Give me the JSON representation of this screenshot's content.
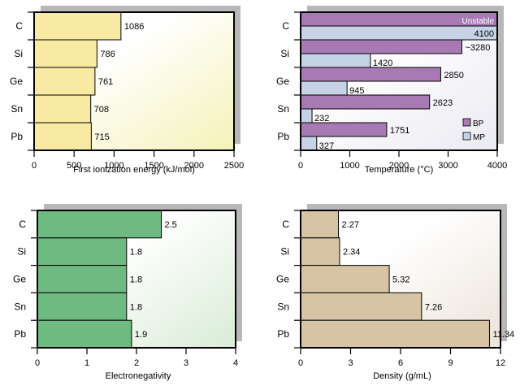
{
  "chart_data": [
    {
      "id": "ionization",
      "type": "bar",
      "orientation": "horizontal",
      "categories": [
        "C",
        "Si",
        "Ge",
        "Sn",
        "Pb"
      ],
      "values": [
        1086,
        786,
        761,
        708,
        715
      ],
      "value_labels": [
        "1086",
        "786",
        "761",
        "708",
        "715"
      ],
      "xlabel": "First ionization energy (kJ/mol)",
      "xlim": [
        0,
        2500
      ],
      "xticks": [
        0,
        500,
        1000,
        1500,
        2000,
        2500
      ],
      "tick_labels": [
        "0",
        "500",
        "1000",
        "1500",
        "2000",
        "2500"
      ],
      "grid": false,
      "colors": {
        "bar": "#f8e9a3",
        "panel_light": "#ffffff",
        "panel_tint": "#f5f2b8",
        "shadow": "#b8b8b8"
      }
    },
    {
      "id": "temperature",
      "type": "bar",
      "orientation": "horizontal",
      "categories": [
        "C",
        "Si",
        "Ge",
        "Sn",
        "Pb"
      ],
      "series": [
        {
          "name": "BP",
          "values": [
            null,
            3280,
            2850,
            2623,
            1751
          ],
          "labels": [
            "",
            "~3280",
            "2850",
            "2623",
            "1751"
          ]
        },
        {
          "name": "MP",
          "values": [
            4100,
            1420,
            945,
            232,
            327
          ],
          "labels": [
            "4100",
            "1420",
            "945",
            "232",
            "327"
          ]
        }
      ],
      "annotations": [
        "Unstable"
      ],
      "unstable_value": 4000,
      "xlabel": "Temperature  (°C)",
      "xlim": [
        0,
        4000
      ],
      "xticks": [
        0,
        1000,
        2000,
        3000,
        4000
      ],
      "tick_labels": [
        "0",
        "1000",
        "2000",
        "3000",
        "4000"
      ],
      "legend": "bottom-right",
      "legend_items": [
        {
          "name": "BP",
          "color": "#a77ab3"
        },
        {
          "name": "MP",
          "color": "#c6d3e6"
        }
      ],
      "grid": false,
      "colors": {
        "bp": "#a77ab3",
        "mp": "#c6d3e6",
        "panel_light": "#ffffff",
        "panel_tint": "#eaeaf2",
        "shadow": "#b8b8b8"
      }
    },
    {
      "id": "electronegativity",
      "type": "bar",
      "orientation": "horizontal",
      "categories": [
        "C",
        "Si",
        "Ge",
        "Sn",
        "Pb"
      ],
      "values": [
        2.5,
        1.8,
        1.8,
        1.8,
        1.9
      ],
      "value_labels": [
        "2.5",
        "1.8",
        "1.8",
        "1.8",
        "1.9"
      ],
      "xlabel": "Electronegativity",
      "xlim": [
        0,
        4
      ],
      "xticks": [
        0,
        1,
        2,
        3,
        4
      ],
      "tick_labels": [
        "0",
        "1",
        "2",
        "3",
        "4"
      ],
      "grid": false,
      "colors": {
        "bar": "#6fba80",
        "panel_light": "#ffffff",
        "panel_tint": "#d9ecd6",
        "shadow": "#b8b8b8"
      }
    },
    {
      "id": "density",
      "type": "bar",
      "orientation": "horizontal",
      "categories": [
        "C",
        "Si",
        "Ge",
        "Sn",
        "Pb"
      ],
      "values": [
        2.27,
        2.34,
        5.32,
        7.26,
        11.34
      ],
      "value_labels": [
        "2.27",
        "2.34",
        "5.32",
        "7.26",
        "11.34"
      ],
      "xlabel": "Density (g/mL)",
      "xlim": [
        0,
        12
      ],
      "xticks": [
        0,
        3,
        6,
        9,
        12
      ],
      "tick_labels": [
        "0",
        "3",
        "6",
        "9",
        "12"
      ],
      "grid": false,
      "colors": {
        "bar": "#d6c4a5",
        "panel_light": "#ffffff",
        "panel_tint": "#ece3da",
        "shadow": "#b8b8b8"
      }
    }
  ]
}
